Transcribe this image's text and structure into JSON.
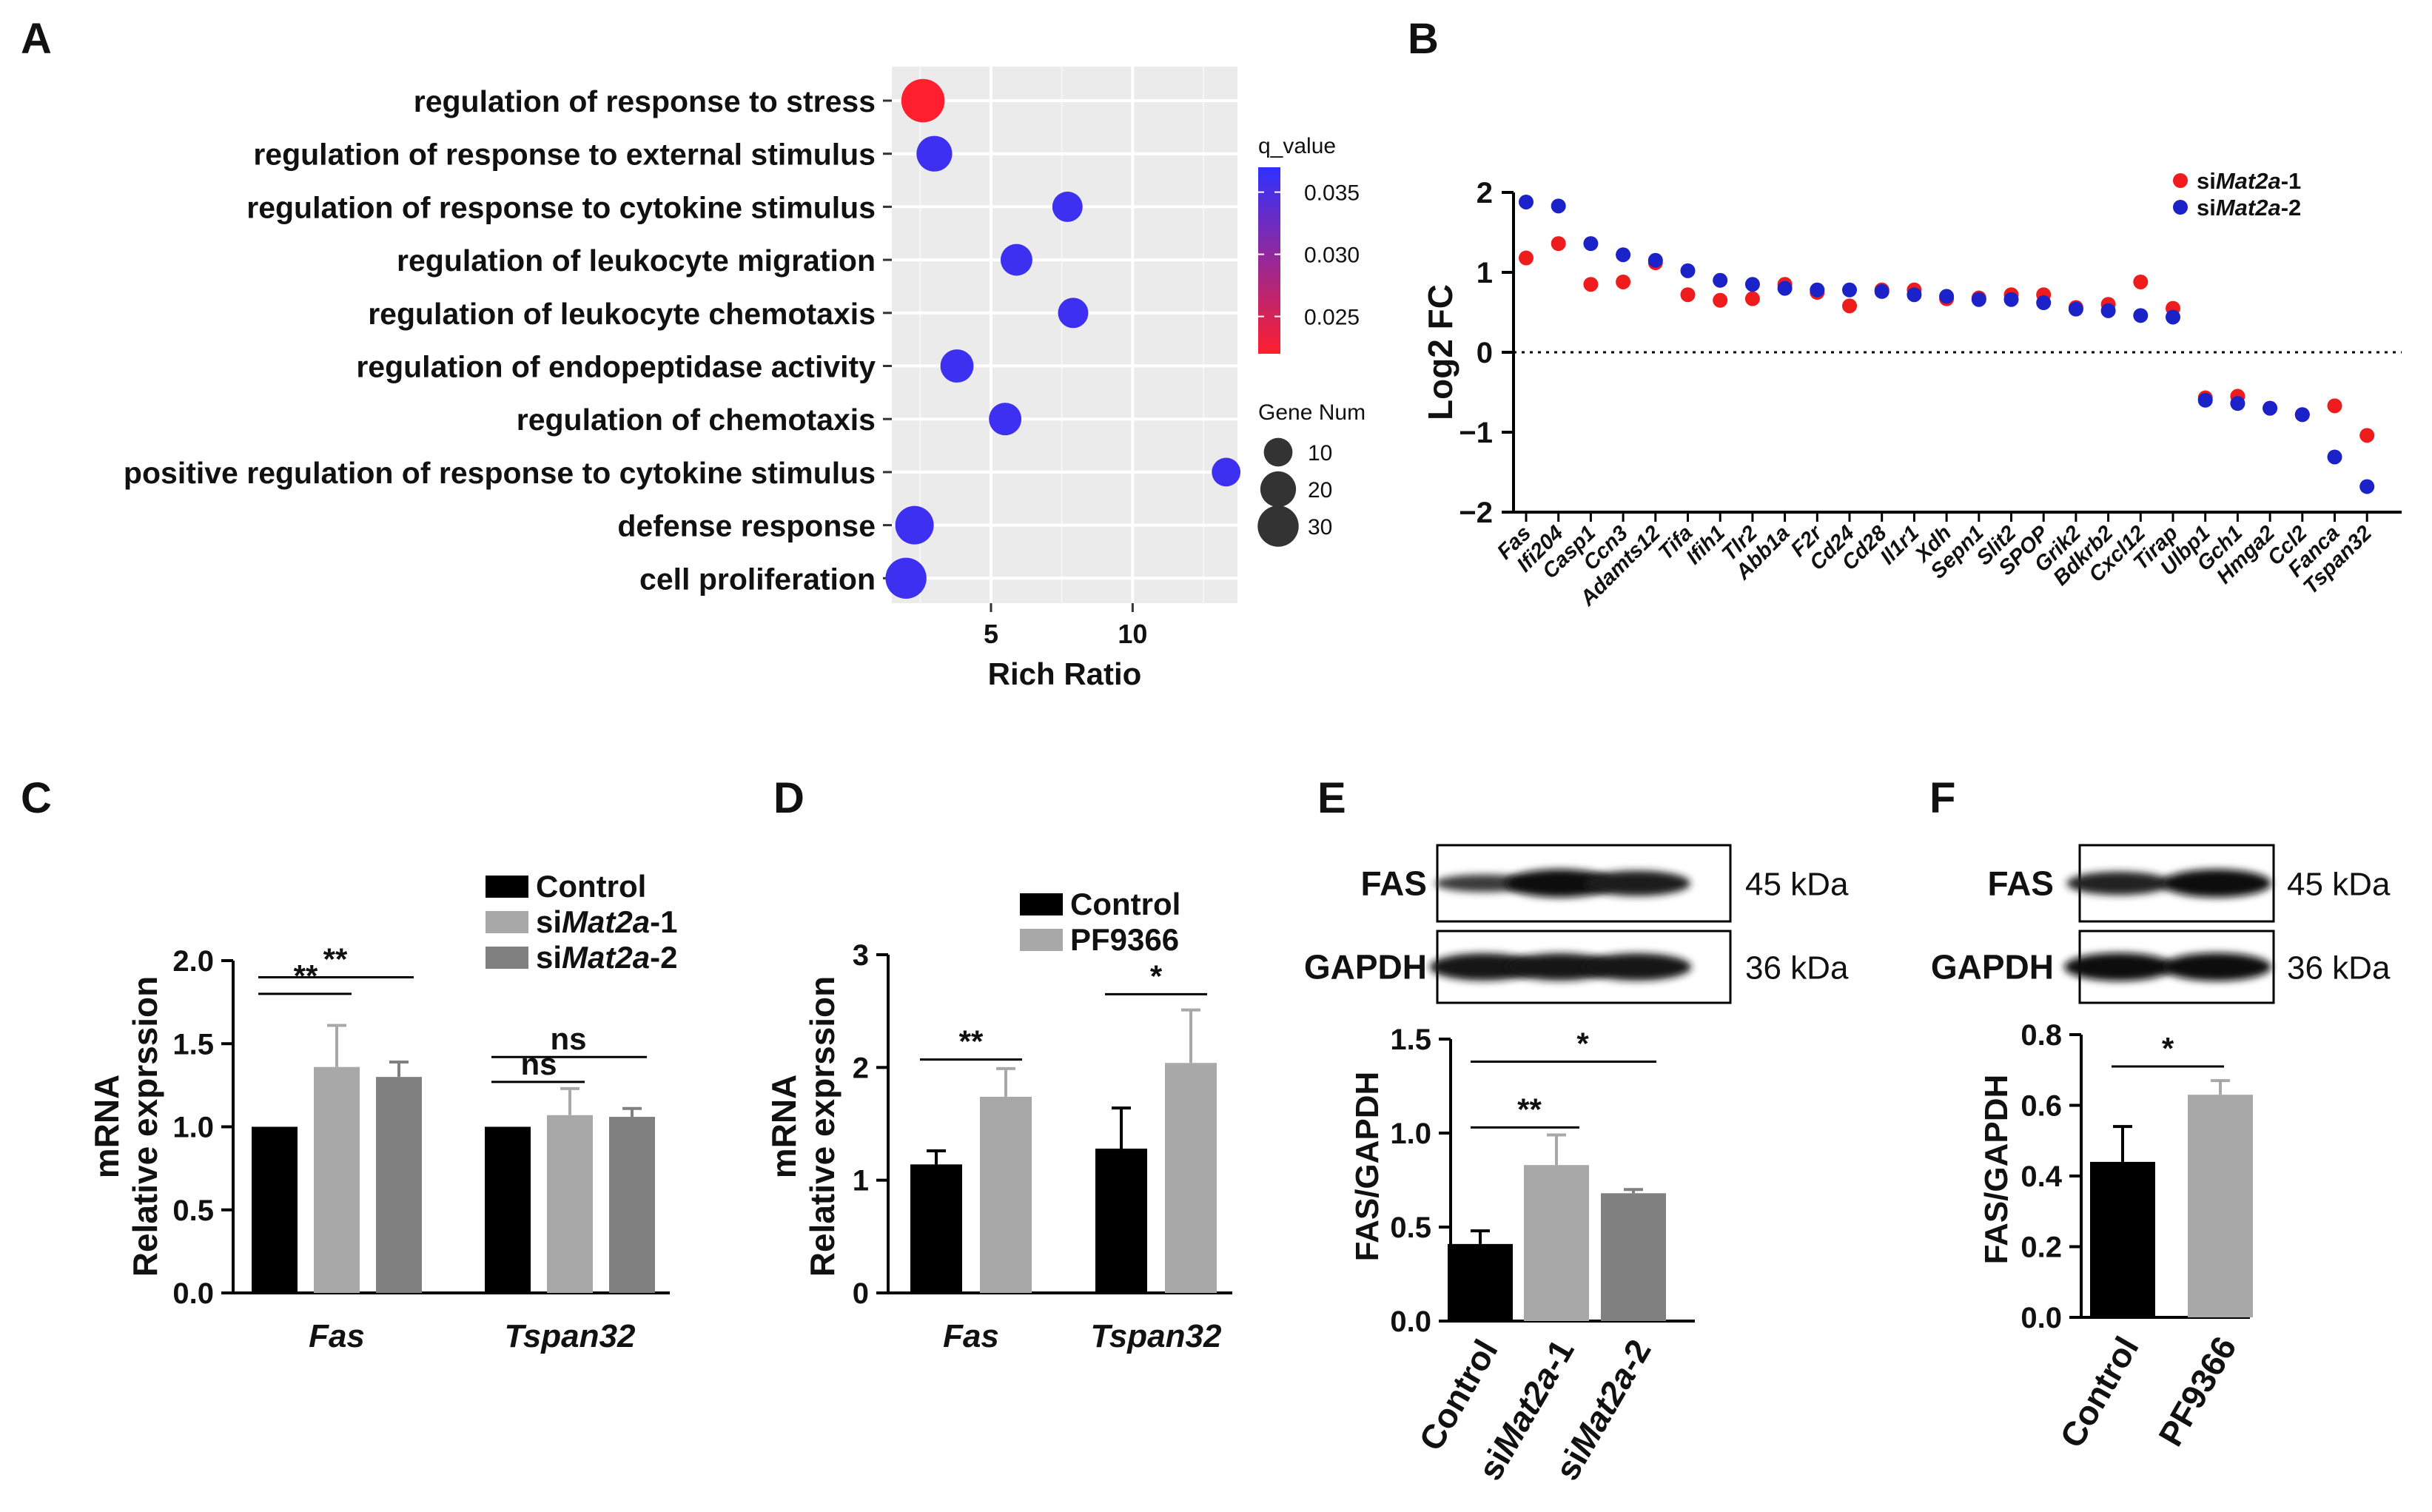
{
  "panels": {
    "A": "A",
    "B": "B",
    "C": "C",
    "D": "D",
    "E": "E",
    "F": "F"
  },
  "chart_data": [
    {
      "id": "A",
      "type": "scatter",
      "xlabel": "Rich Ratio",
      "xticks": [
        5,
        10
      ],
      "xlim": [
        1.5,
        13.7
      ],
      "terms": [
        "regulation of response to stress",
        "regulation of response to external stimulus",
        "regulation of response to cytokine stimulus",
        "regulation of leukocyte migration",
        "regulation of leukocyte chemotaxis",
        "regulation of endopeptidase activity",
        "regulation of chemotaxis",
        "positive regulation of response to cytokine stimulus",
        "defense response",
        "cell proliferation"
      ],
      "rich_ratio": [
        2.6,
        3.0,
        7.7,
        5.9,
        7.9,
        3.8,
        5.5,
        13.3,
        2.3,
        2.0
      ],
      "gene_num": [
        35,
        20,
        12,
        14,
        12,
        16,
        15,
        10,
        25,
        30
      ],
      "q_value": [
        0.022,
        0.036,
        0.036,
        0.036,
        0.036,
        0.036,
        0.036,
        0.036,
        0.036,
        0.036
      ],
      "colorbar": {
        "title": "q_value",
        "ticks": [
          "0.035",
          "0.030",
          "0.025"
        ],
        "range": [
          0.022,
          0.037
        ],
        "low_color": "#ff1f2e",
        "high_color": "#2f31ff"
      },
      "size_legend": {
        "title": "Gene Num",
        "values": [
          "10",
          "20",
          "30"
        ]
      },
      "grid": true
    },
    {
      "id": "B",
      "type": "scatter",
      "ylabel": "Log2 FC",
      "ylim": [
        -2,
        2
      ],
      "yticks": [
        "2",
        "1",
        "0",
        "−1",
        "−2"
      ],
      "genes": [
        "Fas",
        "Ifi204",
        "Casp1",
        "Ccn3",
        "Adamts12",
        "Tifa",
        "Ifih1",
        "Tlr2",
        "Abb1a",
        "F2r",
        "Cd24",
        "Cd28",
        "Il1r1",
        "Xdh",
        "Sepn1",
        "Slit2",
        "SPOP",
        "Grik2",
        "Bdkrb2",
        "Cxcl12",
        "Tirap",
        "Ulbp1",
        "Gch1",
        "Hmga2",
        "Ccl2",
        "Fanca",
        "Tspan32"
      ],
      "series": [
        {
          "name_prefix": "si",
          "name_italic": "Mat2a",
          "name_suffix": "-1",
          "color": "#ee1c1c",
          "values": [
            1.18,
            1.36,
            0.85,
            0.88,
            1.12,
            0.72,
            0.65,
            0.67,
            0.85,
            0.75,
            0.58,
            0.78,
            0.78,
            0.67,
            0.68,
            0.72,
            0.72,
            0.56,
            0.6,
            0.88,
            0.55,
            -0.57,
            -0.55,
            -0.7,
            -0.78,
            -0.67,
            -1.04
          ]
        },
        {
          "name_prefix": "si",
          "name_italic": "Mat2a",
          "name_suffix": "-2",
          "color": "#1a22c8",
          "values": [
            1.88,
            1.83,
            1.36,
            1.22,
            1.15,
            1.02,
            0.9,
            0.85,
            0.8,
            0.78,
            0.78,
            0.76,
            0.72,
            0.7,
            0.66,
            0.66,
            0.62,
            0.54,
            0.52,
            0.46,
            0.44,
            -0.6,
            -0.64,
            -0.7,
            -0.78,
            -1.31,
            -1.68
          ]
        }
      ]
    },
    {
      "id": "C",
      "type": "bar",
      "ylabel": [
        "mRNA",
        "Relative exprssion"
      ],
      "ylim": [
        0,
        2.0
      ],
      "yticks": [
        "0.0",
        "0.5",
        "1.0",
        "1.5",
        "2.0"
      ],
      "categories": [
        "Fas",
        "Tspan32"
      ],
      "legend": [
        {
          "prefix": "Control",
          "italic": "",
          "suffix": "",
          "color": "#000000"
        },
        {
          "prefix": "si",
          "italic": "Mat2a",
          "suffix": "-1",
          "color": "#a8a8a8"
        },
        {
          "prefix": "si",
          "italic": "Mat2a",
          "suffix": "-2",
          "color": "#808080"
        }
      ],
      "series": [
        {
          "color": "#000000",
          "values": [
            1.0,
            1.0
          ],
          "err": [
            0,
            0
          ]
        },
        {
          "color": "#a8a8a8",
          "values": [
            1.36,
            1.07
          ],
          "err": [
            0.25,
            0.16
          ]
        },
        {
          "color": "#808080",
          "values": [
            1.3,
            1.06
          ],
          "err": [
            0.09,
            0.05
          ]
        }
      ],
      "annotations": [
        {
          "group": 0,
          "from": 0,
          "to": 1,
          "y": 1.8,
          "text": "**"
        },
        {
          "group": 0,
          "from": 0,
          "to": 2,
          "y": 1.9,
          "text": "**"
        },
        {
          "group": 1,
          "from": 0,
          "to": 1,
          "y": 1.27,
          "text": "ns"
        },
        {
          "group": 1,
          "from": 0,
          "to": 2,
          "y": 1.42,
          "text": "ns"
        }
      ]
    },
    {
      "id": "D",
      "type": "bar",
      "ylabel": [
        "mRNA",
        "Relative exprssion"
      ],
      "ylim": [
        0,
        3
      ],
      "yticks": [
        "0",
        "1",
        "2",
        "3"
      ],
      "categories": [
        "Fas",
        "Tspan32"
      ],
      "legend": [
        {
          "prefix": "Control",
          "italic": "",
          "suffix": "",
          "color": "#000000"
        },
        {
          "prefix": "PF9366",
          "italic": "",
          "suffix": "",
          "color": "#a8a8a8"
        }
      ],
      "series": [
        {
          "color": "#000000",
          "values": [
            1.14,
            1.28
          ],
          "err": [
            0.12,
            0.36
          ]
        },
        {
          "color": "#a8a8a8",
          "values": [
            1.74,
            2.04
          ],
          "err": [
            0.25,
            0.47
          ]
        }
      ],
      "annotations": [
        {
          "group": 0,
          "from": 0,
          "to": 1,
          "y": 2.07,
          "text": "**"
        },
        {
          "group": 1,
          "from": 0,
          "to": 1,
          "y": 2.65,
          "text": "*"
        }
      ]
    },
    {
      "id": "E",
      "type": "bar",
      "blot": {
        "rows": [
          {
            "label": "FAS",
            "kda": "45 kDa",
            "bands": [
              0.45,
              1.0,
              0.85
            ]
          },
          {
            "label": "GAPDH",
            "kda": "36 kDa",
            "bands": [
              0.95,
              0.95,
              0.95
            ]
          }
        ]
      },
      "ylabel": "FAS/GAPDH",
      "ylim": [
        0,
        1.5
      ],
      "yticks": [
        "0.0",
        "0.5",
        "1.0",
        "1.5"
      ],
      "categories": [
        {
          "prefix": "Control",
          "italic": "",
          "suffix": ""
        },
        {
          "prefix": "si",
          "italic": "Mat2a",
          "suffix": "-1"
        },
        {
          "prefix": "si",
          "italic": "Mat2a",
          "suffix": "-2"
        }
      ],
      "values": [
        0.41,
        0.83,
        0.68
      ],
      "err": [
        0.07,
        0.16,
        0.02
      ],
      "colors": [
        "#000000",
        "#a8a8a8",
        "#808080"
      ],
      "annotations": [
        {
          "from": 0,
          "to": 1,
          "y": 1.03,
          "text": "**"
        },
        {
          "from": 0,
          "to": 2,
          "y": 1.38,
          "text": "*"
        }
      ]
    },
    {
      "id": "F",
      "type": "bar",
      "blot": {
        "rows": [
          {
            "label": "FAS",
            "kda": "45 kDa",
            "bands": [
              0.75,
              1.0
            ]
          },
          {
            "label": "GAPDH",
            "kda": "36 kDa",
            "bands": [
              1.0,
              1.0
            ]
          }
        ]
      },
      "ylabel": "FAS/GAPDH",
      "ylim": [
        0,
        0.8
      ],
      "yticks": [
        "0.0",
        "0.2",
        "0.4",
        "0.6",
        "0.8"
      ],
      "categories": [
        {
          "prefix": "Control",
          "italic": "",
          "suffix": ""
        },
        {
          "prefix": "PF9366",
          "italic": "",
          "suffix": ""
        }
      ],
      "values": [
        0.44,
        0.63
      ],
      "err": [
        0.1,
        0.04
      ],
      "colors": [
        "#000000",
        "#a8a8a8"
      ],
      "annotations": [
        {
          "from": 0,
          "to": 1,
          "y": 0.71,
          "text": "*"
        }
      ]
    }
  ]
}
